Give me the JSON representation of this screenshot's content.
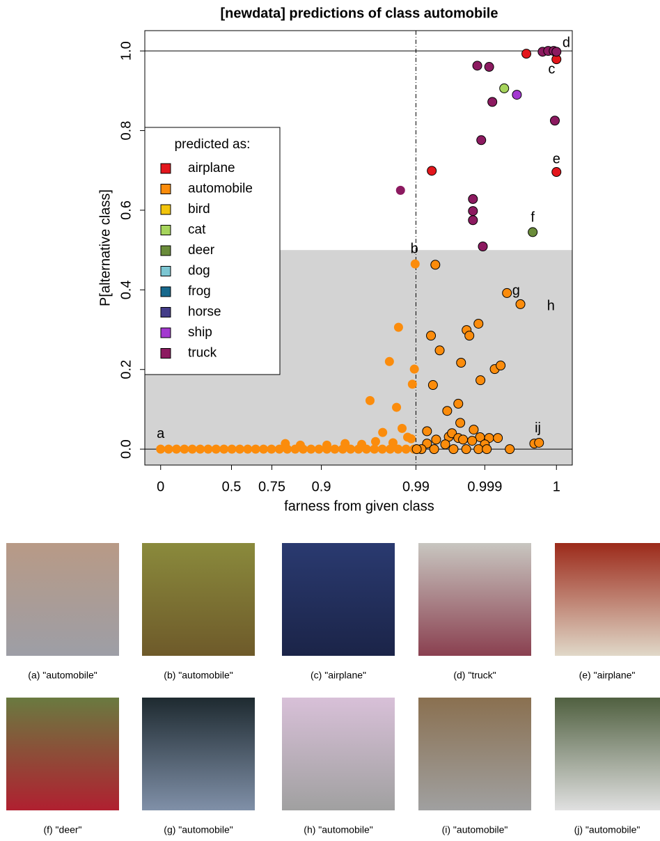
{
  "chart_data": {
    "type": "scatter",
    "title": "[newdata] predictions of class automobile",
    "x_label": "farness from given class",
    "y_label": "P[alternative class]",
    "xlim": [
      -0.04,
      1.04
    ],
    "ylim": [
      -0.04,
      1.051
    ],
    "xticks": [
      0,
      {
        "value": 0.179,
        "label": "0.5"
      },
      {
        "value": 0.281,
        "label": "0.75"
      },
      {
        "value": 0.406,
        "label": "0.9"
      },
      {
        "value": 0.645,
        "label": "0.99"
      },
      {
        "value": 0.819,
        "label": "0.999"
      },
      1
    ],
    "yticks": [
      {
        "value": 0,
        "label": "0.0"
      },
      0.2,
      0.4,
      0.6,
      0.8,
      {
        "value": 1,
        "label": "1.0"
      }
    ],
    "hlines": [
      0,
      1
    ],
    "vline": 0.645,
    "shade_below": 0.5,
    "legend_title": "predicted as:",
    "legend": "left",
    "series": [
      {
        "name": "airplane",
        "color": "#e3161c",
        "x": [
          0.685,
          0.924,
          1.0,
          1.0
        ],
        "y": [
          0.699,
          0.993,
          0.979,
          0.696
        ]
      },
      {
        "name": "automobile",
        "color": "#fb8c0c",
        "x": [
          0,
          0.02,
          0.04,
          0.06,
          0.08,
          0.1,
          0.12,
          0.14,
          0.16,
          0.18,
          0.2,
          0.22,
          0.24,
          0.26,
          0.28,
          0.3,
          0.32,
          0.34,
          0.36,
          0.38,
          0.4,
          0.42,
          0.44,
          0.46,
          0.48,
          0.5,
          0.52,
          0.54,
          0.56,
          0.58,
          0.6,
          0.62,
          0.64,
          0.315,
          0.353,
          0.42,
          0.466,
          0.508,
          0.543,
          0.587,
          0.601,
          0.578,
          0.641,
          0.636,
          0.529,
          0.596,
          0.561,
          0.61,
          0.624,
          0.633,
          0.643,
          0.694,
          0.683,
          0.705,
          0.688,
          0.773,
          0.78,
          0.803,
          0.759,
          0.808,
          0.844,
          0.859,
          0.724,
          0.752,
          0.757,
          0.875,
          0.909,
          0.944,
          0.956,
          0.673,
          0.791,
          0.696,
          0.728,
          0.736,
          0.752,
          0.764,
          0.807,
          0.83,
          0.852,
          0.673,
          0.719,
          0.787,
          0.819,
          0.659,
          0.691,
          0.74,
          0.772,
          0.803,
          0.824,
          0.882,
          0.647
        ],
        "y": [
          0,
          0,
          0,
          0,
          0,
          0,
          0,
          0,
          0,
          0,
          0,
          0,
          0,
          0,
          0,
          0,
          0,
          0,
          0,
          0,
          0,
          0,
          0,
          0,
          0,
          0,
          0,
          0,
          0,
          0,
          0,
          0,
          0,
          0.014,
          0.01,
          0.01,
          0.014,
          0.012,
          0.019,
          0.016,
          0.306,
          0.22,
          0.201,
          0.163,
          0.122,
          0.105,
          0.042,
          0.052,
          0.03,
          0.026,
          0.465,
          0.463,
          0.285,
          0.248,
          0.161,
          0.299,
          0.285,
          0.315,
          0.217,
          0.173,
          0.201,
          0.21,
          0.096,
          0.114,
          0.066,
          0.392,
          0.364,
          0.014,
          0.016,
          0.045,
          0.049,
          0.024,
          0.031,
          0.04,
          0.028,
          0.024,
          0.03,
          0.028,
          0.028,
          0.014,
          0.012,
          0.021,
          0.012,
          0,
          0,
          0,
          0,
          0,
          0,
          0,
          0
        ]
      },
      {
        "name": "bird",
        "color": "#f2c40c",
        "x": [],
        "y": []
      },
      {
        "name": "cat",
        "color": "#a6d45c",
        "x": [
          0.868
        ],
        "y": [
          0.906
        ]
      },
      {
        "name": "deer",
        "color": "#6a8c3a",
        "x": [
          0.94
        ],
        "y": [
          0.545
        ]
      },
      {
        "name": "dog",
        "color": "#7cc6d2",
        "x": [],
        "y": []
      },
      {
        "name": "frog",
        "color": "#16688c",
        "x": [],
        "y": []
      },
      {
        "name": "horse",
        "color": "#433c88",
        "x": [],
        "y": []
      },
      {
        "name": "ship",
        "color": "#a338d0",
        "x": [
          0.9
        ],
        "y": [
          0.89
        ]
      },
      {
        "name": "truck",
        "color": "#8c1a60",
        "x": [
          0.606,
          0.8,
          0.83,
          0.838,
          0.81,
          0.789,
          0.789,
          0.789,
          0.814,
          0.996,
          0.965,
          0.979,
          0.993,
          1.0
        ],
        "y": [
          0.65,
          0.963,
          0.96,
          0.872,
          0.776,
          0.628,
          0.598,
          0.575,
          0.509,
          0.825,
          0.998,
          1.0,
          1.0,
          0.998
        ]
      }
    ],
    "annotations": [
      {
        "text": "a",
        "x": 0,
        "y": 0.037
      },
      {
        "text": "b",
        "x": 0.641,
        "y": 0.502
      },
      {
        "text": "c",
        "x": 0.988,
        "y": 0.953
      },
      {
        "text": "d",
        "x": 1.025,
        "y": 1.019
      },
      {
        "text": "e",
        "x": 1.0,
        "y": 0.727
      },
      {
        "text": "f",
        "x": 0.94,
        "y": 0.58
      },
      {
        "text": "g",
        "x": 0.898,
        "y": 0.397
      },
      {
        "text": "h",
        "x": 0.986,
        "y": 0.358
      },
      {
        "text": "ij",
        "x": 0.953,
        "y": 0.051
      }
    ]
  },
  "figures": [
    {
      "caption": "(a) \"automobile\""
    },
    {
      "caption": "(b) \"automobile\""
    },
    {
      "caption": "(c) \"airplane\""
    },
    {
      "caption": "(d) \"truck\""
    },
    {
      "caption": "(e) \"airplane\""
    },
    {
      "caption": "(f) \"deer\""
    },
    {
      "caption": "(g) \"automobile\""
    },
    {
      "caption": "(h) \"automobile\""
    },
    {
      "caption": "(i) \"automobile\""
    },
    {
      "caption": "(j) \"automobile\""
    }
  ]
}
